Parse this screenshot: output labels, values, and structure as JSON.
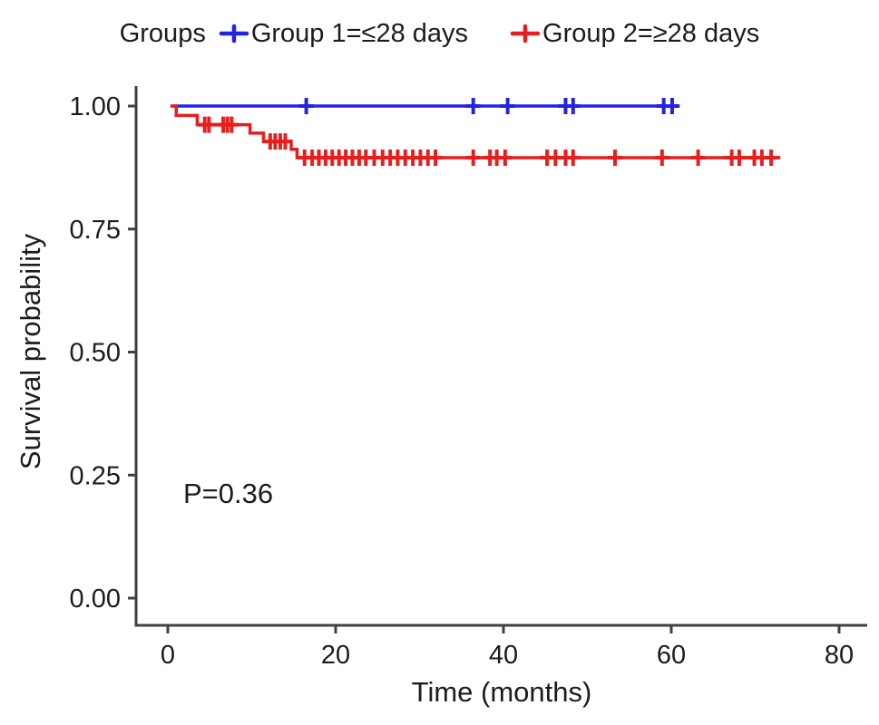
{
  "figure": {
    "background": "#ffffff",
    "legend": {
      "title": "Groups",
      "entries": [
        {
          "label": "Group 1=≤28 days",
          "marker": "plus-icon"
        },
        {
          "label": "Group 2=≥28 days",
          "marker": "plus-icon"
        }
      ]
    },
    "annotation": "P=0.36",
    "xlabel": "Time (months)",
    "ylabel": "Survival probability"
  },
  "chart_data": {
    "type": "line",
    "subtype": "kaplan-meier-step-curve",
    "title": "",
    "xlabel": "Time (months)",
    "ylabel": "Survival probability",
    "xlim": [
      0,
      83
    ],
    "ylim": [
      0,
      1.04
    ],
    "xticks": [
      0,
      20,
      40,
      60,
      80
    ],
    "ytick_labels": [
      "0.00",
      "0.25",
      "0.50",
      "0.75",
      "1.00"
    ],
    "grid": false,
    "legend_position": "top",
    "legend_title": "Groups",
    "pvalue_annotation": {
      "text": "P=0.36",
      "x_months": 7.5,
      "y_prob": 0.21
    },
    "axis_color": "#404040",
    "text_color": "#1c1c1c",
    "series": [
      {
        "name": "Group 1=≤28 days",
        "color": "#2424e0",
        "steps": [
          [
            0.5,
            1.0
          ],
          [
            61.0,
            1.0
          ]
        ],
        "censor_times": [
          16.5,
          36.4,
          40.5,
          47.4,
          48.3,
          59.1,
          60.1
        ]
      },
      {
        "name": "Group 2=≥28 days",
        "color": "#e81e1e",
        "steps": [
          [
            0.3,
            1.0
          ],
          [
            1.0,
            0.981
          ],
          [
            3.5,
            0.962
          ],
          [
            9.8,
            0.945
          ],
          [
            11.4,
            0.928
          ],
          [
            14.7,
            0.912
          ],
          [
            15.4,
            0.895
          ],
          [
            73.0,
            0.895
          ]
        ],
        "censor_times": [
          4.4,
          4.9,
          6.6,
          7.1,
          7.6,
          12.2,
          12.8,
          13.4,
          14.0,
          16.3,
          17.2,
          18.0,
          18.8,
          19.6,
          20.4,
          21.2,
          22.0,
          22.8,
          23.6,
          24.6,
          25.6,
          26.5,
          27.4,
          28.3,
          29.2,
          30.1,
          31.0,
          31.9,
          36.4,
          38.4,
          39.2,
          40.2,
          45.2,
          46.2,
          47.4,
          48.3,
          53.3,
          58.9,
          63.2,
          67.2,
          68.1,
          69.9,
          70.8,
          71.9
        ]
      }
    ]
  }
}
